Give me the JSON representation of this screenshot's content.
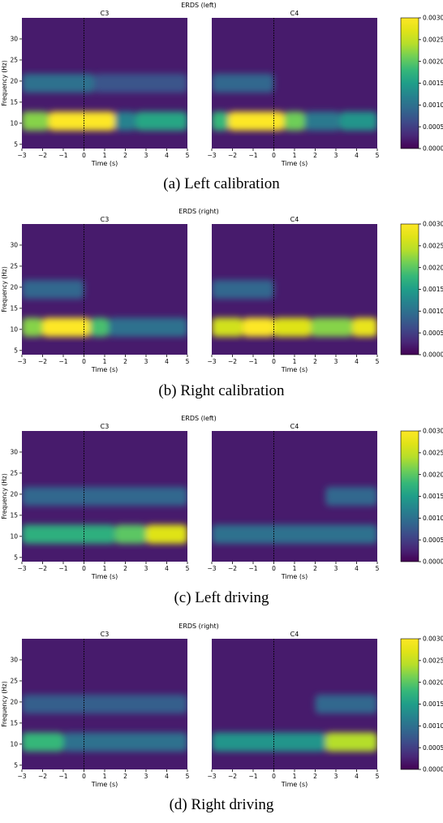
{
  "colorbar_ticks": [
    "0.0000",
    "0.0005",
    "0.0010",
    "0.0015",
    "0.0020",
    "0.0025",
    "0.0030"
  ],
  "chart_data": [
    {
      "type": "heatmap",
      "title": "ERDS (left)",
      "caption": "(a) Left calibration",
      "xlabel": "Time (s)",
      "ylabel": "Frequency (Hz)",
      "xlim": [
        -3,
        5
      ],
      "ylim": [
        4,
        35
      ],
      "xticks": [
        "−3",
        "−2",
        "−1",
        "0",
        "1",
        "2",
        "3",
        "4",
        "5"
      ],
      "yticks": [
        "5",
        "10",
        "15",
        "20",
        "25",
        "30"
      ],
      "colorbar_range": [
        0,
        0.003
      ],
      "colormap": "viridis",
      "panels": [
        {
          "name": "C3",
          "blobs": [
            {
              "t": [
                -3,
                -1.7
              ],
              "f": 10.5,
              "v": 0.0022
            },
            {
              "t": [
                -1.7,
                1.5
              ],
              "f": 10.5,
              "v": 0.0032
            },
            {
              "t": [
                1.5,
                2.5
              ],
              "f": 10.5,
              "v": 0.0012
            },
            {
              "t": [
                2.5,
                5
              ],
              "f": 10.5,
              "v": 0.0016
            },
            {
              "t": [
                -3,
                0.5
              ],
              "f": 19.5,
              "v": 0.001
            },
            {
              "t": [
                0.5,
                5
              ],
              "f": 19.5,
              "v": 0.0007
            }
          ]
        },
        {
          "name": "C4",
          "blobs": [
            {
              "t": [
                -3,
                -2.2
              ],
              "f": 10.5,
              "v": 0.0018
            },
            {
              "t": [
                -2.2,
                0.5
              ],
              "f": 10.5,
              "v": 0.0031
            },
            {
              "t": [
                0.5,
                1.5
              ],
              "f": 10.5,
              "v": 0.0021
            },
            {
              "t": [
                1.5,
                3.2
              ],
              "f": 10.5,
              "v": 0.0011
            },
            {
              "t": [
                3.2,
                5
              ],
              "f": 10.5,
              "v": 0.0014
            },
            {
              "t": [
                -3,
                0
              ],
              "f": 19.5,
              "v": 0.0009
            }
          ]
        }
      ]
    },
    {
      "type": "heatmap",
      "title": "ERDS (right)",
      "caption": "(b) Right calibration",
      "xlabel": "Time (s)",
      "ylabel": "Frequency (Hz)",
      "xlim": [
        -3,
        5
      ],
      "ylim": [
        4,
        35
      ],
      "xticks": [
        "−3",
        "−2",
        "−1",
        "0",
        "1",
        "2",
        "3",
        "4",
        "5"
      ],
      "yticks": [
        "5",
        "10",
        "15",
        "20",
        "25",
        "30"
      ],
      "colorbar_range": [
        0,
        0.003
      ],
      "colormap": "viridis",
      "panels": [
        {
          "name": "C3",
          "blobs": [
            {
              "t": [
                -3,
                -2
              ],
              "f": 10.5,
              "v": 0.0022
            },
            {
              "t": [
                -2,
                0.3
              ],
              "f": 10.5,
              "v": 0.0031
            },
            {
              "t": [
                0.3,
                1.2
              ],
              "f": 10.5,
              "v": 0.0019
            },
            {
              "t": [
                1.2,
                5
              ],
              "f": 10.5,
              "v": 0.001
            },
            {
              "t": [
                -3,
                0
              ],
              "f": 19.5,
              "v": 0.0009
            }
          ]
        },
        {
          "name": "C4",
          "blobs": [
            {
              "t": [
                -3,
                -1.5
              ],
              "f": 10.5,
              "v": 0.0026
            },
            {
              "t": [
                -1.5,
                0
              ],
              "f": 10.5,
              "v": 0.0031
            },
            {
              "t": [
                0,
                1.8
              ],
              "f": 10.5,
              "v": 0.0027
            },
            {
              "t": [
                1.8,
                3.8
              ],
              "f": 10.5,
              "v": 0.0022
            },
            {
              "t": [
                3.8,
                5
              ],
              "f": 10.5,
              "v": 0.0028
            },
            {
              "t": [
                -3,
                0
              ],
              "f": 19.5,
              "v": 0.0009
            }
          ]
        }
      ]
    },
    {
      "type": "heatmap",
      "title": "ERDS (left)",
      "caption": "(c) Left driving",
      "xlabel": "Time (s)",
      "ylabel": "Frequency (Hz)",
      "xlim": [
        -3,
        5
      ],
      "ylim": [
        4,
        35
      ],
      "xticks": [
        "−3",
        "−2",
        "−1",
        "0",
        "1",
        "2",
        "3",
        "4",
        "5"
      ],
      "yticks": [
        "5",
        "10",
        "15",
        "20",
        "25",
        "30"
      ],
      "colorbar_range": [
        0,
        0.003
      ],
      "colormap": "viridis",
      "panels": [
        {
          "name": "C3",
          "blobs": [
            {
              "t": [
                -3,
                1.5
              ],
              "f": 10.5,
              "v": 0.0017
            },
            {
              "t": [
                1.5,
                3
              ],
              "f": 10.5,
              "v": 0.002
            },
            {
              "t": [
                3,
                5
              ],
              "f": 10.5,
              "v": 0.0027
            },
            {
              "t": [
                -3,
                5
              ],
              "f": 19.5,
              "v": 0.0009
            }
          ]
        },
        {
          "name": "C4",
          "blobs": [
            {
              "t": [
                -3,
                5
              ],
              "f": 10.5,
              "v": 0.001
            },
            {
              "t": [
                2.5,
                5
              ],
              "f": 19.5,
              "v": 0.0009
            }
          ]
        }
      ]
    },
    {
      "type": "heatmap",
      "title": "ERDS (right)",
      "caption": "(d) Right driving",
      "xlabel": "Time (s)",
      "ylabel": "Frequency (Hz)",
      "xlim": [
        -3,
        5
      ],
      "ylim": [
        4,
        35
      ],
      "xticks": [
        "−3",
        "−2",
        "−1",
        "0",
        "1",
        "2",
        "3",
        "4",
        "5"
      ],
      "yticks": [
        "5",
        "10",
        "15",
        "20",
        "25",
        "30"
      ],
      "colorbar_range": [
        0,
        0.003
      ],
      "colormap": "viridis",
      "panels": [
        {
          "name": "C3",
          "blobs": [
            {
              "t": [
                -3,
                -1
              ],
              "f": 10.5,
              "v": 0.0018
            },
            {
              "t": [
                -1,
                5
              ],
              "f": 10.5,
              "v": 0.001
            },
            {
              "t": [
                -3,
                5
              ],
              "f": 19.5,
              "v": 0.0008
            }
          ]
        },
        {
          "name": "C4",
          "blobs": [
            {
              "t": [
                -3,
                2.5
              ],
              "f": 10.5,
              "v": 0.0014
            },
            {
              "t": [
                2.5,
                5
              ],
              "f": 10.5,
              "v": 0.0024
            },
            {
              "t": [
                2,
                5
              ],
              "f": 19.5,
              "v": 0.0009
            }
          ]
        }
      ]
    }
  ]
}
